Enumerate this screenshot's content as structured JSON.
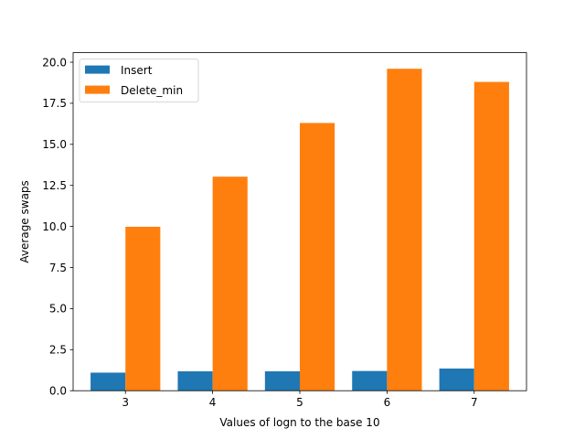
{
  "chart_data": {
    "type": "bar",
    "title": "",
    "xlabel": "Values of logn to the base 10",
    "ylabel": "Average swaps",
    "categories": [
      "3",
      "4",
      "5",
      "6",
      "7"
    ],
    "series": [
      {
        "name": "Insert",
        "color": "#1f77b4",
        "values": [
          1.1,
          1.18,
          1.18,
          1.2,
          1.35
        ]
      },
      {
        "name": "Delete_min",
        "color": "#ff7f0e",
        "values": [
          9.98,
          13.03,
          16.3,
          19.6,
          18.8
        ]
      }
    ],
    "ylim": [
      0,
      20.58
    ],
    "yticks": [
      "0.0",
      "2.5",
      "5.0",
      "7.5",
      "10.0",
      "12.5",
      "15.0",
      "17.5",
      "20.0"
    ],
    "ytick_values": [
      0,
      2.5,
      5,
      7.5,
      10,
      12.5,
      15,
      17.5,
      20
    ],
    "grid": false,
    "legend_position": "upper-left"
  }
}
